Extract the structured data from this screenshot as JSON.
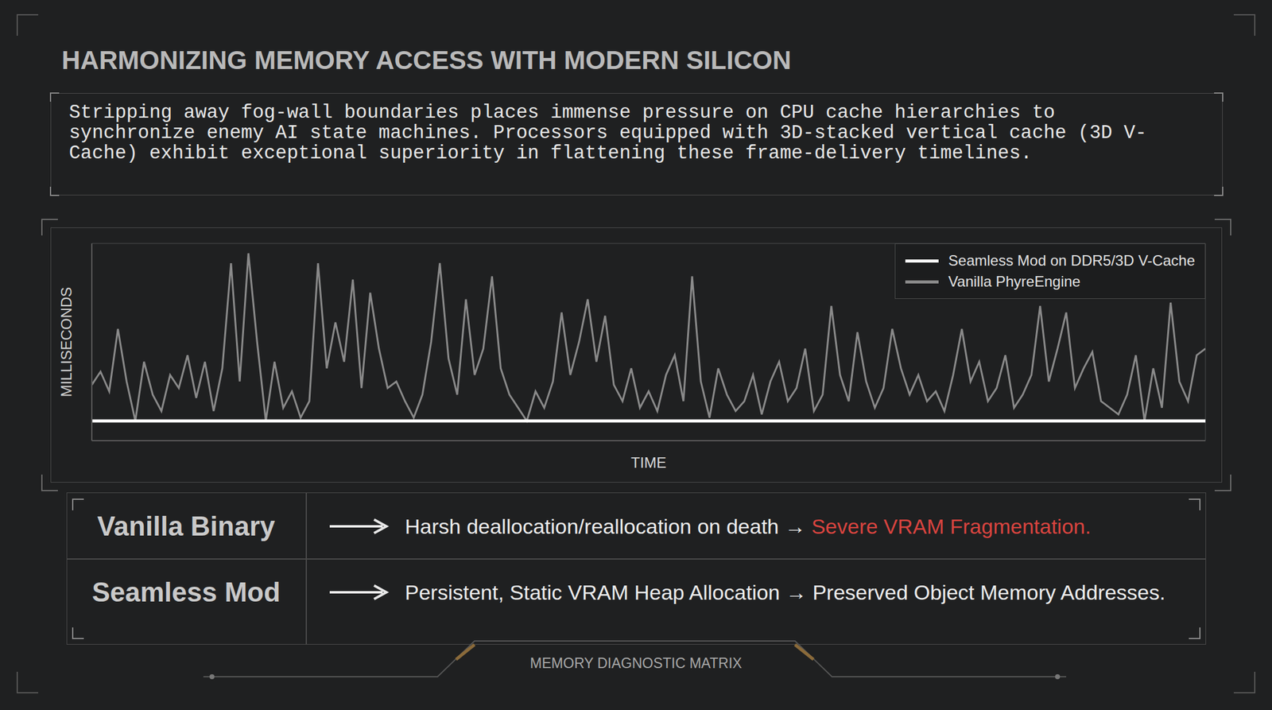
{
  "title": "HARMONIZING MEMORY ACCESS WITH MODERN SILICON",
  "description": "Stripping away fog-wall boundaries places immense pressure on CPU cache hierarchies to synchronize enemy AI state machines. Processors equipped with 3D-stacked vertical cache (3D V-Cache) exhibit exceptional superiority in flattening these frame-delivery timelines.",
  "chart_data": {
    "type": "line",
    "x_label": "TIME",
    "y_label": "MILLISECONDS",
    "x": [
      0,
      1,
      2,
      3,
      4,
      5,
      6,
      7,
      8,
      9,
      10,
      11,
      12,
      13,
      14,
      15,
      16,
      17,
      18,
      19,
      20,
      21,
      22,
      23,
      24,
      25,
      26,
      27,
      28,
      29,
      30,
      31,
      32,
      33,
      34,
      35,
      36,
      37,
      38,
      39,
      40,
      41,
      42,
      43,
      44,
      45,
      46,
      47,
      48,
      49,
      50,
      51,
      52,
      53,
      54,
      55,
      56,
      57,
      58,
      59,
      60,
      61,
      62,
      63,
      64,
      65,
      66,
      67,
      68,
      69,
      70,
      71,
      72,
      73,
      74,
      75,
      76,
      77,
      78,
      79,
      80,
      81,
      82,
      83,
      84,
      85,
      86,
      87,
      88,
      89,
      90,
      91,
      92,
      93,
      94,
      95,
      96,
      97,
      98,
      99,
      100,
      101,
      102,
      103,
      104,
      105,
      106,
      107,
      108,
      109,
      110,
      111,
      112,
      113,
      114,
      115,
      116,
      117,
      118,
      119,
      120,
      121,
      122,
      123,
      124,
      125,
      126,
      127,
      128
    ],
    "series": [
      {
        "name": "Vanilla PhyreEngine",
        "color": "#8a8a8a",
        "values": [
          17,
          21,
          15,
          34,
          18,
          6,
          24,
          14,
          9,
          20,
          16,
          26,
          13,
          24,
          9,
          22,
          54,
          18,
          57,
          30,
          6,
          24,
          10,
          15,
          7,
          12,
          54,
          22,
          36,
          24,
          49,
          16,
          45,
          28,
          16,
          18,
          12,
          7,
          14,
          30,
          54,
          25,
          14,
          43,
          20,
          28,
          50,
          22,
          14,
          10,
          6,
          15,
          10,
          18,
          39,
          20,
          30,
          43,
          24,
          38,
          17,
          12,
          22,
          10,
          15,
          9,
          20,
          26,
          12,
          50,
          18,
          7,
          22,
          14,
          9,
          12,
          20,
          8,
          18,
          24,
          12,
          16,
          28,
          9,
          14,
          41,
          20,
          12,
          33,
          18,
          10,
          16,
          34,
          22,
          14,
          20,
          12,
          15,
          9,
          20,
          34,
          18,
          24,
          12,
          16,
          26,
          10,
          14,
          20,
          41,
          18,
          28,
          39,
          16,
          22,
          27,
          12,
          10,
          8,
          14,
          26,
          6,
          22,
          10,
          42,
          18,
          12,
          26,
          28
        ]
      },
      {
        "name": "Seamless Mod on DDR5/3D V-Cache",
        "color": "#ffffff",
        "values": [
          6,
          6,
          6,
          6,
          6,
          6,
          6,
          6,
          6,
          6,
          6,
          6,
          6,
          6,
          6,
          6,
          6,
          6,
          6,
          6,
          6,
          6,
          6,
          6,
          6,
          6,
          6,
          6,
          6,
          6,
          6,
          6,
          6,
          6,
          6,
          6,
          6,
          6,
          6,
          6,
          6,
          6,
          6,
          6,
          6,
          6,
          6,
          6,
          6,
          6,
          6,
          6,
          6,
          6,
          6,
          6,
          6,
          6,
          6,
          6,
          6,
          6,
          6,
          6,
          6,
          6,
          6,
          6,
          6,
          6,
          6,
          6,
          6,
          6,
          6,
          6,
          6,
          6,
          6,
          6,
          6,
          6,
          6,
          6,
          6,
          6,
          6,
          6,
          6,
          6,
          6,
          6,
          6,
          6,
          6,
          6,
          6,
          6,
          6,
          6,
          6,
          6,
          6,
          6,
          6,
          6,
          6,
          6,
          6,
          6,
          6,
          6,
          6,
          6,
          6,
          6,
          6,
          6,
          6,
          6,
          6,
          6,
          6,
          6,
          6,
          6,
          6,
          6,
          6
        ]
      }
    ],
    "xlim": [
      0,
      128
    ],
    "xticks": [
      0,
      12,
      24,
      36,
      48,
      60,
      72,
      84,
      96,
      108,
      120
    ],
    "ylim": [
      0,
      60
    ],
    "yticks": [
      0,
      10,
      20,
      30,
      40,
      50,
      60
    ],
    "grid": true,
    "legend": "upper right",
    "tick_labels": false
  },
  "table": {
    "rows": [
      {
        "label": "Vanilla Binary",
        "description": "Harsh deallocation/reallocation on death →",
        "highlight": "Severe VRAM Fragmentation."
      },
      {
        "label": "Seamless Mod",
        "description": "Persistent, Static VRAM Heap Allocation → Preserved Object Memory Addresses."
      }
    ]
  },
  "footer": "MEMORY DIAGNOSTIC MATRIX"
}
